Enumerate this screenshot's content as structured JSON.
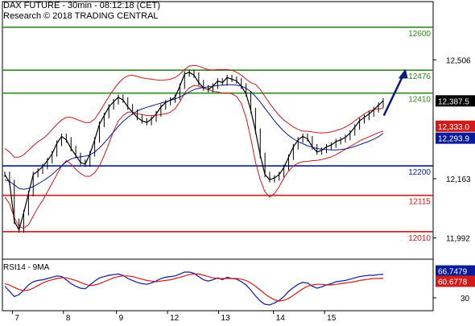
{
  "chart_data": [
    {
      "type": "candlestick",
      "title": "DAX FUTURE - 30min - 08:12:18 (CET)",
      "subtitle": "Research © 2018 TRADING CENTRAL",
      "x_ticks": [
        "7",
        "8",
        "9",
        "12",
        "13",
        "14",
        "15"
      ],
      "y_ticks": [
        {
          "value": 12506,
          "label": "12,506"
        },
        {
          "value": 12163,
          "label": "12,163"
        },
        {
          "value": 11992,
          "label": "11,992"
        }
      ],
      "ylim": [
        11940,
        12660
      ],
      "horizontal_levels": [
        {
          "value": 12600,
          "label": "12600",
          "color": "#2e8b1e"
        },
        {
          "value": 12476,
          "label": "12476",
          "color": "#2e8b1e"
        },
        {
          "value": 12410,
          "label": "12410",
          "color": "#2e8b1e"
        },
        {
          "value": 12200,
          "label": "12200",
          "color": "#0a1a9a"
        },
        {
          "value": 12115,
          "label": "12115",
          "color": "#d11a1a"
        },
        {
          "value": 12010,
          "label": "12010",
          "color": "#d11a1a"
        }
      ],
      "price_tags": [
        {
          "value": 12387.5,
          "label": "12,387.5",
          "bg": "#000000",
          "fg": "#ffffff"
        },
        {
          "value": 12333,
          "label": "12,333.0",
          "bg": "#d11a1a",
          "fg": "#ffffff"
        },
        {
          "value": 12293.9,
          "label": "12,293.9",
          "bg": "#0a1a9a",
          "fg": "#ffffff"
        }
      ],
      "projection": {
        "from": [
          2.78,
          12345
        ],
        "to": [
          2.97,
          12480
        ],
        "color": "#0a1a7a"
      },
      "series": [
        {
          "name": "",
          "color": "#000000",
          "values": [
            12175,
            12152,
            12040,
            12015,
            12065,
            12120,
            12175,
            12185,
            12198,
            12215,
            12235,
            12265,
            12285,
            12275,
            12250,
            12230,
            12210,
            12205,
            12235,
            12275,
            12320,
            12345,
            12370,
            12385,
            12398,
            12390,
            12370,
            12355,
            12340,
            12330,
            12325,
            12335,
            12350,
            12370,
            12383,
            12390,
            12398,
            12430,
            12465,
            12470,
            12462,
            12440,
            12425,
            12420,
            12430,
            12445,
            12440,
            12455,
            12450,
            12445,
            12430,
            12408,
            12360,
            12300,
            12230,
            12175,
            12160,
            12165,
            12175,
            12195,
            12225,
            12255,
            12275,
            12285,
            12278,
            12255,
            12240,
            12245,
            12255,
            12260,
            12270,
            12275,
            12282,
            12295,
            12312,
            12330,
            12340,
            12350,
            12362,
            12375,
            12387.5
          ]
        },
        {
          "name": "",
          "color": "#d11a1a",
          "values": [
            12250,
            12240,
            12225,
            12225,
            12232,
            12245,
            12258,
            12270,
            12278,
            12290,
            12305,
            12320,
            12332,
            12340,
            12340,
            12335,
            12330,
            12325,
            12325,
            12335,
            12355,
            12378,
            12400,
            12420,
            12438,
            12452,
            12460,
            12462,
            12458,
            12454,
            12452,
            12450,
            12448,
            12447,
            12448,
            12450,
            12455,
            12465,
            12478,
            12488,
            12490,
            12488,
            12482,
            12478,
            12476,
            12478,
            12478,
            12478,
            12476,
            12470,
            12462,
            12450,
            12440,
            12435,
            12420,
            12400,
            12380,
            12362,
            12345,
            12332,
            12322,
            12312,
            12305,
            12300,
            12300,
            12298,
            12296,
            12295,
            12296,
            12298,
            12302,
            12306,
            12312,
            12320,
            12330,
            12340,
            12350,
            12358,
            12362,
            12364,
            12366
          ]
        },
        {
          "name": "",
          "color": "#d11a1a",
          "values": [
            12110,
            12090,
            12050,
            12025,
            12020,
            12030,
            12055,
            12080,
            12100,
            12125,
            12150,
            12175,
            12200,
            12215,
            12205,
            12190,
            12178,
            12170,
            12170,
            12180,
            12200,
            12230,
            12265,
            12300,
            12330,
            12345,
            12355,
            12355,
            12350,
            12348,
            12345,
            12345,
            12346,
            12348,
            12350,
            12355,
            12365,
            12385,
            12410,
            12425,
            12432,
            12430,
            12425,
            12420,
            12415,
            12413,
            12410,
            12410,
            12408,
            12400,
            12380,
            12340,
            12280,
            12210,
            12160,
            12125,
            12110,
            12120,
            12140,
            12165,
            12185,
            12200,
            12208,
            12212,
            12213,
            12215,
            12216,
            12218,
            12222,
            12226,
            12232,
            12240,
            12248,
            12256,
            12264,
            12272,
            12278,
            12284,
            12290,
            12296,
            12300
          ]
        },
        {
          "name": "",
          "color": "#0a1a9a",
          "values": [
            12160,
            12155,
            12145,
            12135,
            12132,
            12135,
            12140,
            12148,
            12156,
            12165,
            12175,
            12188,
            12200,
            12212,
            12220,
            12224,
            12226,
            12228,
            12232,
            12240,
            12252,
            12266,
            12282,
            12298,
            12314,
            12328,
            12340,
            12350,
            12358,
            12364,
            12369,
            12373,
            12377,
            12381,
            12385,
            12389,
            12393,
            12399,
            12406,
            12413,
            12420,
            12424,
            12426,
            12428,
            12430,
            12432,
            12433,
            12434,
            12434,
            12433,
            12430,
            12424,
            12414,
            12400,
            12384,
            12366,
            12348,
            12330,
            12314,
            12300,
            12288,
            12278,
            12270,
            12264,
            12258,
            12254,
            12250,
            12248,
            12247,
            12246,
            12246,
            12247,
            12249,
            12252,
            12256,
            12261,
            12266,
            12271,
            12277,
            12284,
            12293.9
          ]
        }
      ]
    },
    {
      "type": "line",
      "title": "RSI14 - 9MA",
      "ylim": [
        15,
        85
      ],
      "y_ticks": [
        {
          "value": 30,
          "label": "30"
        }
      ],
      "price_tags": [
        {
          "value": 66.7479,
          "label": "66.7479",
          "bg": "#0a1a9a",
          "fg": "#ffffff"
        },
        {
          "value": 60.6778,
          "label": "60.6778",
          "bg": "#d11a1a",
          "fg": "#ffffff"
        }
      ],
      "series": [
        {
          "name": "",
          "color": "#0a1a9a",
          "values": [
            48,
            40,
            32,
            35,
            42,
            50,
            55,
            57,
            58,
            60,
            62,
            64,
            63,
            58,
            52,
            48,
            45,
            44,
            50,
            56,
            61,
            63,
            65,
            66,
            67,
            65,
            60,
            57,
            54,
            52,
            51,
            53,
            56,
            60,
            62,
            63,
            64,
            67,
            70,
            70,
            68,
            63,
            58,
            56,
            58,
            61,
            58,
            62,
            60,
            59,
            55,
            50,
            42,
            33,
            25,
            20,
            19,
            22,
            26,
            32,
            40,
            46,
            51,
            54,
            53,
            48,
            45,
            47,
            50,
            52,
            55,
            56,
            57,
            59,
            61,
            63,
            64,
            65,
            65,
            66,
            66.7479
          ]
        },
        {
          "name": "",
          "color": "#d11a1a",
          "values": [
            52,
            50,
            46,
            43,
            41,
            42,
            45,
            49,
            53,
            56,
            58,
            60,
            61,
            61,
            59,
            57,
            54,
            51,
            49,
            50,
            52,
            55,
            58,
            61,
            63,
            64,
            64,
            63,
            61,
            59,
            57,
            56,
            55,
            56,
            57,
            58,
            60,
            62,
            64,
            66,
            67,
            67,
            65,
            63,
            61,
            60,
            60,
            60,
            60,
            60,
            59,
            57,
            53,
            48,
            42,
            36,
            31,
            27,
            25,
            26,
            29,
            34,
            39,
            44,
            48,
            50,
            51,
            51,
            50,
            50,
            51,
            52,
            53,
            54,
            55,
            57,
            58,
            59,
            60,
            60,
            60.6778
          ]
        }
      ]
    }
  ]
}
